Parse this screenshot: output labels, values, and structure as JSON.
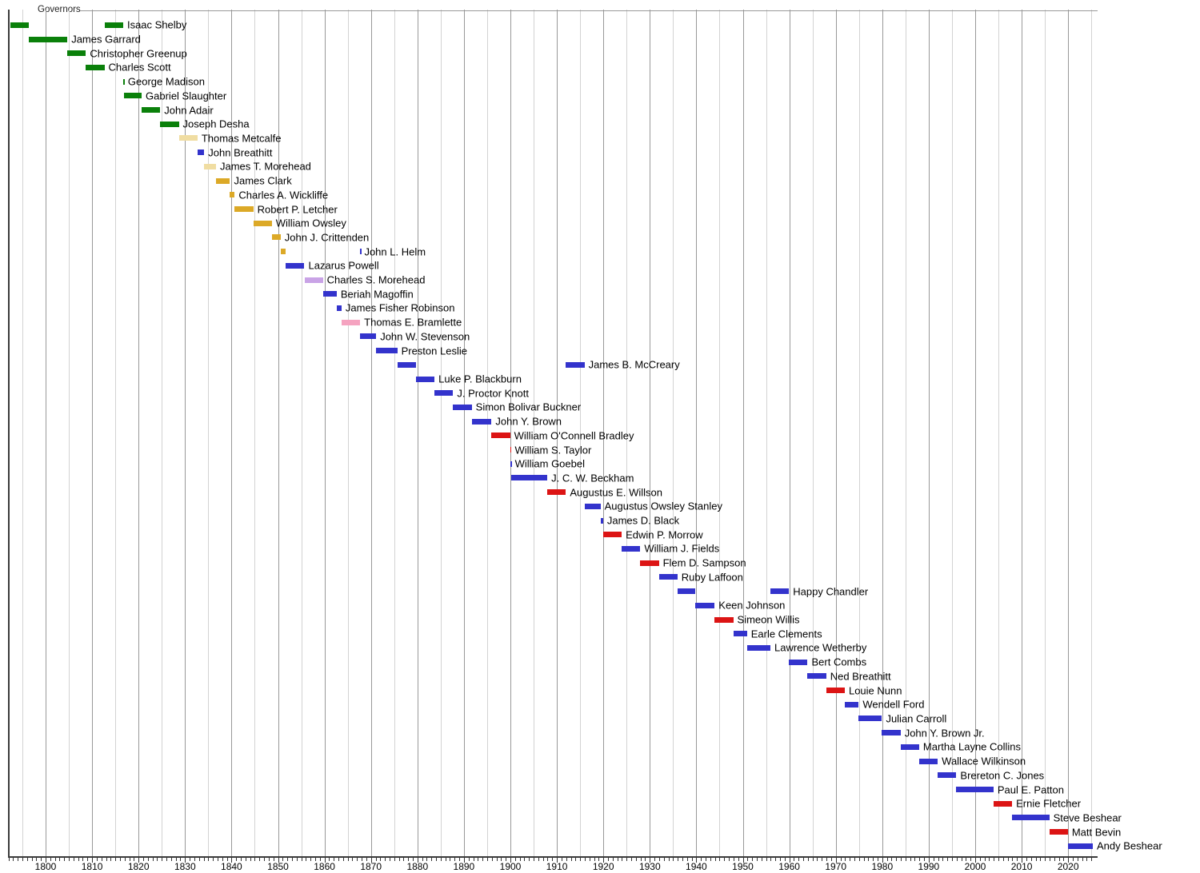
{
  "chart_data": {
    "type": "timeline",
    "title": "Governors",
    "x_axis": {
      "start_year": 1792,
      "end_year": 2026,
      "gridline_every": 5,
      "minor_tick_every": 1,
      "tick_labels": [
        "1800",
        "1810",
        "1820",
        "1830",
        "1840",
        "1850",
        "1860",
        "1870",
        "1880",
        "1890",
        "1900",
        "1910",
        "1920",
        "1930",
        "1940",
        "1950",
        "1960",
        "1970",
        "1980",
        "1990",
        "2000",
        "2010",
        "2020"
      ],
      "grid": true
    },
    "party_colors": {
      "democratic_republican": "#0a800a",
      "national_republican": "#f0dda2",
      "whig": "#dca927",
      "democratic": "#3333cc",
      "know_nothing": "#c9a3e6",
      "union": "#f5a3c0",
      "republican": "#dc1414"
    },
    "governors": [
      {
        "name": "Isaac Shelby",
        "party": "democratic_republican",
        "terms": [
          [
            1792.42,
            1796.42
          ],
          [
            1812.66,
            1816.69
          ]
        ]
      },
      {
        "name": "James Garrard",
        "party": "democratic_republican",
        "terms": [
          [
            1796.42,
            1804.68
          ]
        ]
      },
      {
        "name": "Christopher Greenup",
        "party": "democratic_republican",
        "terms": [
          [
            1804.68,
            1808.67
          ]
        ]
      },
      {
        "name": "Charles Scott",
        "party": "democratic_republican",
        "terms": [
          [
            1808.67,
            1812.66
          ]
        ]
      },
      {
        "name": "George Madison",
        "party": "democratic_republican",
        "terms": [
          [
            1816.69,
            1816.85
          ]
        ]
      },
      {
        "name": "Gabriel Slaughter",
        "party": "democratic_republican",
        "terms": [
          [
            1816.85,
            1820.66
          ]
        ]
      },
      {
        "name": "John Adair",
        "party": "democratic_republican",
        "terms": [
          [
            1820.66,
            1824.66
          ]
        ]
      },
      {
        "name": "Joseph Desha",
        "party": "democratic_republican",
        "terms": [
          [
            1824.66,
            1828.66
          ]
        ]
      },
      {
        "name": "Thomas Metcalfe",
        "party": "national_republican",
        "terms": [
          [
            1828.66,
            1832.67
          ]
        ]
      },
      {
        "name": "John Breathitt",
        "party": "democratic",
        "terms": [
          [
            1832.67,
            1834.13
          ]
        ]
      },
      {
        "name": "James T. Morehead",
        "party": "national_republican",
        "terms": [
          [
            1834.13,
            1836.66
          ]
        ]
      },
      {
        "name": "James Clark",
        "party": "whig",
        "terms": [
          [
            1836.66,
            1839.67
          ]
        ]
      },
      {
        "name": "Charles A. Wickliffe",
        "party": "whig",
        "terms": [
          [
            1839.67,
            1840.69
          ]
        ]
      },
      {
        "name": "Robert P. Letcher",
        "party": "whig",
        "terms": [
          [
            1840.69,
            1844.68
          ]
        ]
      },
      {
        "name": "William Owsley",
        "party": "whig",
        "terms": [
          [
            1844.68,
            1848.67
          ]
        ]
      },
      {
        "name": "John J. Crittenden",
        "party": "whig",
        "terms": [
          [
            1848.67,
            1850.56
          ]
        ]
      },
      {
        "name": "John L. Helm",
        "party": "whig",
        "terms": [
          [
            1850.56,
            1851.68
          ],
          [
            1867.67,
            1867.72
          ]
        ],
        "term_parties": [
          "whig",
          "democratic"
        ]
      },
      {
        "name": "Lazarus Powell",
        "party": "democratic",
        "terms": [
          [
            1851.68,
            1855.68
          ]
        ]
      },
      {
        "name": "Charles S. Morehead",
        "party": "know_nothing",
        "terms": [
          [
            1855.68,
            1859.66
          ]
        ]
      },
      {
        "name": "Beriah Magoffin",
        "party": "democratic",
        "terms": [
          [
            1859.66,
            1862.63
          ]
        ]
      },
      {
        "name": "James Fisher Robinson",
        "party": "democratic",
        "terms": [
          [
            1862.63,
            1863.67
          ]
        ]
      },
      {
        "name": "Thomas E. Bramlette",
        "party": "union",
        "terms": [
          [
            1863.67,
            1867.67
          ]
        ]
      },
      {
        "name": "John W. Stevenson",
        "party": "democratic",
        "terms": [
          [
            1867.72,
            1871.12
          ]
        ]
      },
      {
        "name": "Preston Leslie",
        "party": "democratic",
        "terms": [
          [
            1871.12,
            1875.66
          ]
        ]
      },
      {
        "name": "James B. McCreary",
        "party": "democratic",
        "terms": [
          [
            1875.66,
            1879.67
          ],
          [
            1911.94,
            1915.94
          ]
        ]
      },
      {
        "name": "Luke P. Blackburn",
        "party": "democratic",
        "terms": [
          [
            1879.67,
            1883.67
          ]
        ]
      },
      {
        "name": "J. Proctor Knott",
        "party": "democratic",
        "terms": [
          [
            1883.67,
            1887.67
          ]
        ]
      },
      {
        "name": "Simon Bolivar Buckner",
        "party": "democratic",
        "terms": [
          [
            1887.67,
            1891.68
          ]
        ]
      },
      {
        "name": "John Y. Brown",
        "party": "democratic",
        "terms": [
          [
            1891.68,
            1895.94
          ]
        ]
      },
      {
        "name": "William O'Connell Bradley",
        "party": "republican",
        "terms": [
          [
            1895.94,
            1899.94
          ]
        ]
      },
      {
        "name": "William S. Taylor",
        "party": "republican",
        "terms": [
          [
            1899.94,
            1900.08
          ]
        ]
      },
      {
        "name": "William Goebel",
        "party": "democratic",
        "terms": [
          [
            1900.08,
            1900.1
          ]
        ]
      },
      {
        "name": "J. C. W. Beckham",
        "party": "democratic",
        "terms": [
          [
            1900.1,
            1907.94
          ]
        ]
      },
      {
        "name": "Augustus E. Willson",
        "party": "republican",
        "terms": [
          [
            1907.94,
            1911.94
          ]
        ]
      },
      {
        "name": "Augustus Owsley Stanley",
        "party": "democratic",
        "terms": [
          [
            1915.94,
            1919.38
          ]
        ]
      },
      {
        "name": "James D. Black",
        "party": "democratic",
        "terms": [
          [
            1919.38,
            1919.94
          ]
        ]
      },
      {
        "name": "Edwin P. Morrow",
        "party": "republican",
        "terms": [
          [
            1919.94,
            1923.94
          ]
        ]
      },
      {
        "name": "William J. Fields",
        "party": "democratic",
        "terms": [
          [
            1923.94,
            1927.94
          ]
        ]
      },
      {
        "name": "Flem D. Sampson",
        "party": "republican",
        "terms": [
          [
            1927.94,
            1931.94
          ]
        ]
      },
      {
        "name": "Ruby Laffoon",
        "party": "democratic",
        "terms": [
          [
            1931.94,
            1935.94
          ]
        ]
      },
      {
        "name": "Happy Chandler",
        "party": "democratic",
        "terms": [
          [
            1935.94,
            1939.79
          ],
          [
            1955.94,
            1959.94
          ]
        ]
      },
      {
        "name": "Keen Johnson",
        "party": "democratic",
        "terms": [
          [
            1939.79,
            1943.94
          ]
        ]
      },
      {
        "name": "Simeon Willis",
        "party": "republican",
        "terms": [
          [
            1943.94,
            1947.94
          ]
        ]
      },
      {
        "name": "Earle Clements",
        "party": "democratic",
        "terms": [
          [
            1947.94,
            1950.9
          ]
        ]
      },
      {
        "name": "Lawrence Wetherby",
        "party": "democratic",
        "terms": [
          [
            1950.9,
            1955.94
          ]
        ]
      },
      {
        "name": "Bert Combs",
        "party": "democratic",
        "terms": [
          [
            1959.94,
            1963.94
          ]
        ]
      },
      {
        "name": "Ned Breathitt",
        "party": "democratic",
        "terms": [
          [
            1963.94,
            1967.94
          ]
        ]
      },
      {
        "name": "Louie Nunn",
        "party": "republican",
        "terms": [
          [
            1967.94,
            1971.94
          ]
        ]
      },
      {
        "name": "Wendell Ford",
        "party": "democratic",
        "terms": [
          [
            1971.94,
            1974.94
          ]
        ]
      },
      {
        "name": "Julian Carroll",
        "party": "democratic",
        "terms": [
          [
            1974.94,
            1979.94
          ]
        ]
      },
      {
        "name": "John Y. Brown Jr.",
        "party": "democratic",
        "terms": [
          [
            1979.94,
            1983.94
          ]
        ]
      },
      {
        "name": "Martha Layne Collins",
        "party": "democratic",
        "terms": [
          [
            1983.94,
            1987.94
          ]
        ]
      },
      {
        "name": "Wallace Wilkinson",
        "party": "democratic",
        "terms": [
          [
            1987.94,
            1991.94
          ]
        ]
      },
      {
        "name": "Brereton C. Jones",
        "party": "democratic",
        "terms": [
          [
            1991.94,
            1995.94
          ]
        ]
      },
      {
        "name": "Paul E. Patton",
        "party": "democratic",
        "terms": [
          [
            1995.94,
            2003.94
          ]
        ]
      },
      {
        "name": "Ernie Fletcher",
        "party": "republican",
        "terms": [
          [
            2003.94,
            2007.94
          ]
        ]
      },
      {
        "name": "Steve Beshear",
        "party": "democratic",
        "terms": [
          [
            2007.94,
            2015.94
          ]
        ]
      },
      {
        "name": "Matt Bevin",
        "party": "republican",
        "terms": [
          [
            2015.94,
            2019.94
          ]
        ]
      },
      {
        "name": "Andy Beshear",
        "party": "democratic",
        "terms": [
          [
            2019.94,
            2025.3
          ]
        ]
      }
    ]
  }
}
